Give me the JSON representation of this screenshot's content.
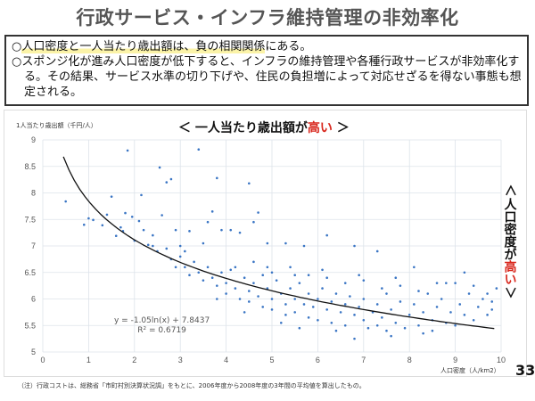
{
  "title": "行政サービス・インフラ維持管理の非効率化",
  "summary": {
    "line1_marker": "○",
    "line1_highlight": "人口密度と一人当たり歳出額は、負の相関関係",
    "line1_rest": "にある。",
    "line2": "○スポンジ化が進み人口密度が低下すると、インフラの維持管理や各種行政サービスが非効率化する。その結果、サービス水準の切り下げや、住民の負担増によって対応せざるを得ない事態も想定される。"
  },
  "annotations": {
    "top_prefix": "＜ 一人当たり歳出額が",
    "top_red": "高い",
    "top_suffix": " ＞",
    "right_prefix": "＜",
    "right_text": "人口密度が",
    "right_red": "高い",
    "right_suffix": "＞"
  },
  "page_number": "33",
  "note": "（注）行政コストは、総務省「市町村別決算状況調」をもとに、2006年度から2008年度の3年間の平均値を算出したもの。",
  "colors": {
    "points": "#3a75c4",
    "trend": "#111111",
    "highlight": "#fbf3a8",
    "accent_red": "#d8261c"
  },
  "chart_data": {
    "type": "scatter",
    "xlabel": "人口密度（人/km2）",
    "ylabel": "1人当たり歳出額（千円/人）",
    "xlim": [
      0,
      10
    ],
    "ylim": [
      5,
      9
    ],
    "xticks": [
      "0",
      "1",
      "2",
      "3",
      "4",
      "5",
      "6",
      "7",
      "8",
      "9",
      "10"
    ],
    "yticks": [
      "5",
      "5.5",
      "6",
      "6.5",
      "7",
      "7.5",
      "8",
      "8.5",
      "9"
    ],
    "grid": true,
    "trendline": {
      "type": "log",
      "a": -1.05,
      "b": 7.8437,
      "equation": "y = -1.05ln(x) + 7.8437",
      "r2": "R² = 0.6719",
      "x_range": [
        0.45,
        9.85
      ]
    },
    "points": [
      [
        0.5,
        7.84
      ],
      [
        0.9,
        7.4
      ],
      [
        1.0,
        7.52
      ],
      [
        1.1,
        7.49
      ],
      [
        1.3,
        7.39
      ],
      [
        1.4,
        7.59
      ],
      [
        1.5,
        7.93
      ],
      [
        1.6,
        7.19
      ],
      [
        1.7,
        7.35
      ],
      [
        1.75,
        7.28
      ],
      [
        1.8,
        7.62
      ],
      [
        1.85,
        8.8
      ],
      [
        1.95,
        7.55
      ],
      [
        2.0,
        7.1
      ],
      [
        2.1,
        7.47
      ],
      [
        2.15,
        7.96
      ],
      [
        2.3,
        7.02
      ],
      [
        2.4,
        7.2
      ],
      [
        2.55,
        8.48
      ],
      [
        2.6,
        7.58
      ],
      [
        2.7,
        8.2
      ],
      [
        2.8,
        8.26
      ],
      [
        2.9,
        7.3
      ],
      [
        3.0,
        7.0
      ],
      [
        3.1,
        6.9
      ],
      [
        3.2,
        7.28
      ],
      [
        3.4,
        8.82
      ],
      [
        3.5,
        7.05
      ],
      [
        3.6,
        7.45
      ],
      [
        3.7,
        7.65
      ],
      [
        3.8,
        8.28
      ],
      [
        3.9,
        7.3
      ],
      [
        4.1,
        7.3
      ],
      [
        4.3,
        7.25
      ],
      [
        4.5,
        8.18
      ],
      [
        4.6,
        7.45
      ],
      [
        4.7,
        7.63
      ],
      [
        4.9,
        7.05
      ],
      [
        5.3,
        7.05
      ],
      [
        5.7,
        7.0
      ],
      [
        6.2,
        7.2
      ],
      [
        6.8,
        7.0
      ],
      [
        7.3,
        6.9
      ],
      [
        8.1,
        6.6
      ],
      [
        9.4,
        6.25
      ],
      [
        9.7,
        6.1
      ],
      [
        2.2,
        7.3
      ],
      [
        2.4,
        7.0
      ],
      [
        2.5,
        6.9
      ],
      [
        2.7,
        6.95
      ],
      [
        2.8,
        6.75
      ],
      [
        2.9,
        6.6
      ],
      [
        3.0,
        6.8
      ],
      [
        3.1,
        6.6
      ],
      [
        3.2,
        6.45
      ],
      [
        3.3,
        6.7
      ],
      [
        3.4,
        6.5
      ],
      [
        3.5,
        6.35
      ],
      [
        3.6,
        6.6
      ],
      [
        3.7,
        6.4
      ],
      [
        3.8,
        6.25
      ],
      [
        3.9,
        6.5
      ],
      [
        4.0,
        6.3
      ],
      [
        4.0,
        6.1
      ],
      [
        4.1,
        6.55
      ],
      [
        4.2,
        6.2
      ],
      [
        4.3,
        6.0
      ],
      [
        4.4,
        6.4
      ],
      [
        4.5,
        6.15
      ],
      [
        4.5,
        5.95
      ],
      [
        4.6,
        6.3
      ],
      [
        4.7,
        6.05
      ],
      [
        4.8,
        5.85
      ],
      [
        4.8,
        6.45
      ],
      [
        4.9,
        6.2
      ],
      [
        5.0,
        6.0
      ],
      [
        5.0,
        5.8
      ],
      [
        5.1,
        6.35
      ],
      [
        5.2,
        6.1
      ],
      [
        5.3,
        5.9
      ],
      [
        5.3,
        5.7
      ],
      [
        5.4,
        6.2
      ],
      [
        5.5,
        6.0
      ],
      [
        5.5,
        5.75
      ],
      [
        5.6,
        6.3
      ],
      [
        5.7,
        5.9
      ],
      [
        5.8,
        5.65
      ],
      [
        5.8,
        6.1
      ],
      [
        5.9,
        5.85
      ],
      [
        6.0,
        6.0
      ],
      [
        6.0,
        5.6
      ],
      [
        6.1,
        6.2
      ],
      [
        6.2,
        5.8
      ],
      [
        6.3,
        5.95
      ],
      [
        6.3,
        5.55
      ],
      [
        6.4,
        6.1
      ],
      [
        6.5,
        5.75
      ],
      [
        6.6,
        5.9
      ],
      [
        6.6,
        5.5
      ],
      [
        6.7,
        6.05
      ],
      [
        6.8,
        5.7
      ],
      [
        6.8,
        5.25
      ],
      [
        6.9,
        5.85
      ],
      [
        7.0,
        5.6
      ],
      [
        7.0,
        6.0
      ],
      [
        7.1,
        5.45
      ],
      [
        7.2,
        5.75
      ],
      [
        7.3,
        5.9
      ],
      [
        7.3,
        5.5
      ],
      [
        7.4,
        5.65
      ],
      [
        7.5,
        6.1
      ],
      [
        7.5,
        5.4
      ],
      [
        7.6,
        5.8
      ],
      [
        7.7,
        5.55
      ],
      [
        7.8,
        5.95
      ],
      [
        7.9,
        5.45
      ],
      [
        8.0,
        5.7
      ],
      [
        8.1,
        5.9
      ],
      [
        8.2,
        5.5
      ],
      [
        8.3,
        5.75
      ],
      [
        8.4,
        6.1
      ],
      [
        8.5,
        5.6
      ],
      [
        8.5,
        5.4
      ],
      [
        8.6,
        5.85
      ],
      [
        8.7,
        6.0
      ],
      [
        8.8,
        5.55
      ],
      [
        8.9,
        5.75
      ],
      [
        9.0,
        6.3
      ],
      [
        9.0,
        5.5
      ],
      [
        9.1,
        5.9
      ],
      [
        9.2,
        5.7
      ],
      [
        9.3,
        6.1
      ],
      [
        9.4,
        5.6
      ],
      [
        9.5,
        5.85
      ],
      [
        9.6,
        6.0
      ],
      [
        9.7,
        5.7
      ],
      [
        9.8,
        5.95
      ],
      [
        9.8,
        5.8
      ],
      [
        9.9,
        6.2
      ],
      [
        4.2,
        6.6
      ],
      [
        4.6,
        6.7
      ],
      [
        5.0,
        6.5
      ],
      [
        5.4,
        6.6
      ],
      [
        5.8,
        6.45
      ],
      [
        6.2,
        6.4
      ],
      [
        6.6,
        6.3
      ],
      [
        7.0,
        6.35
      ],
      [
        7.4,
        6.2
      ],
      [
        7.8,
        6.25
      ],
      [
        8.2,
        6.15
      ],
      [
        8.6,
        6.3
      ],
      [
        5.2,
        5.55
      ],
      [
        5.6,
        5.45
      ],
      [
        6.4,
        5.4
      ],
      [
        7.6,
        5.3
      ],
      [
        8.3,
        5.35
      ],
      [
        4.4,
        5.75
      ],
      [
        3.8,
        6.0
      ],
      [
        4.9,
        6.6
      ],
      [
        5.5,
        6.45
      ],
      [
        6.1,
        6.55
      ],
      [
        6.9,
        6.45
      ],
      [
        7.7,
        6.4
      ],
      [
        8.8,
        6.3
      ],
      [
        9.2,
        6.5
      ]
    ]
  }
}
